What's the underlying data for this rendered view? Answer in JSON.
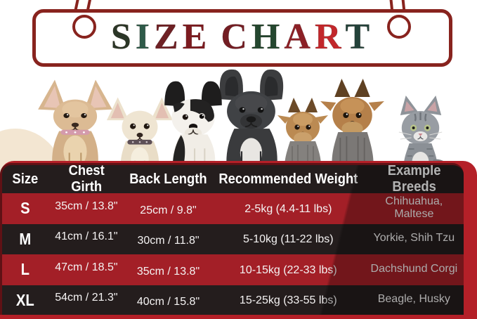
{
  "banner": {
    "title": "SIZE CHART",
    "letter_colors": [
      "#2b3627",
      "#2e5a49",
      "#6e2125",
      "#7c1b20",
      "#7c1b20",
      "#731d23",
      "#24472f",
      "#8c2026",
      "#c2272b",
      "#23423a"
    ]
  },
  "photo_band": {
    "animals": [
      "chihuahua-fawn",
      "chihuahua-cream",
      "french-bulldog-pied",
      "french-bulldog-dark",
      "yorkshire-terrier-small",
      "yorkshire-terrier-large",
      "gray-kitten"
    ]
  },
  "table": {
    "headers": [
      "Size",
      "Chest Girth",
      "Back Length",
      "Recommended Weight",
      "Example Breeds"
    ],
    "rows": [
      {
        "size": "S",
        "chest": "35cm / 13.8\"",
        "back": "25cm / 9.8\"",
        "weight": "2-5kg (4.4-11 lbs)",
        "breeds": "Chihuahua, Maltese"
      },
      {
        "size": "M",
        "chest": "41cm / 16.1\"",
        "back": "30cm / 11.8\"",
        "weight": "5-10kg (11-22 lbs)",
        "breeds": "Yorkie, Shih Tzu"
      },
      {
        "size": "L",
        "chest": "47cm / 18.5\"",
        "back": "35cm / 13.8\"",
        "weight": "10-15kg (22-33 lbs)",
        "breeds": "Dachshund Corgi"
      },
      {
        "size": "XL",
        "chest": "54cm / 21.3\"",
        "back": "40cm / 15.8\"",
        "weight": "15-25kg (33-55 lbs)",
        "breeds": "Beagle, Husky"
      }
    ]
  },
  "chart_data": {
    "type": "table",
    "title": "SIZE CHART",
    "columns": [
      "Size",
      "Chest Girth",
      "Back Length",
      "Recommended Weight",
      "Example Breeds"
    ],
    "rows": [
      [
        "S",
        "35cm / 13.8\"",
        "25cm / 9.8\"",
        "2-5kg (4.4-11 lbs)",
        "Chihuahua, Maltese"
      ],
      [
        "M",
        "41cm / 16.1\"",
        "30cm / 11.8\"",
        "5-10kg (11-22 lbs)",
        "Yorkie, Shih Tzu"
      ],
      [
        "L",
        "47cm / 18.5\"",
        "35cm / 13.8\"",
        "10-15kg (22-33 lbs)",
        "Dachshund Corgi"
      ],
      [
        "XL",
        "54cm / 21.3\"",
        "40cm / 15.8\"",
        "15-25kg (33-55 lbs)",
        "Beagle, Husky"
      ]
    ]
  },
  "colors": {
    "banner_border": "#88231e",
    "row_red": "#a31f27",
    "row_dark": "#241d1d",
    "table_back_red": "#b42028",
    "blob_beige": "#f3e6d2",
    "text_white": "#ffffff"
  }
}
